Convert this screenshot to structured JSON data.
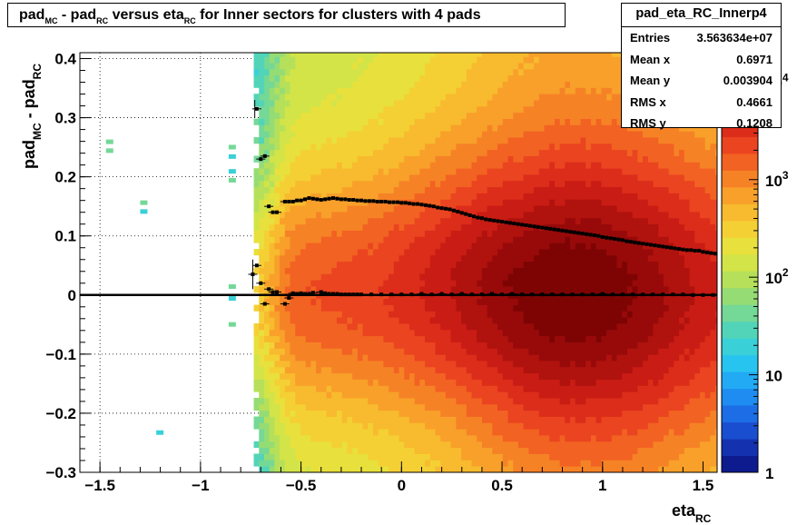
{
  "title": {
    "parts": [
      "pad",
      "MC",
      " - pad",
      "RC",
      " versus eta",
      "RC",
      " for Inner sectors for clusters with 4 pads"
    ]
  },
  "stats": {
    "name": "pad_eta_RC_Innerp4",
    "rows": [
      {
        "key": "Entries",
        "value": "3.563634e+07"
      },
      {
        "key": "Mean x",
        "value": "0.6971"
      },
      {
        "key": "Mean y",
        "value": "0.003904"
      },
      {
        "key": "RMS x",
        "value": "0.4661"
      },
      {
        "key": "RMS y",
        "value": "0.1208"
      }
    ]
  },
  "chart_data": {
    "type": "heatmap",
    "xlabel": {
      "main": "eta",
      "sub": "RC"
    },
    "ylabel": {
      "main1": "pad",
      "sub1": "MC",
      "main2": " - pad",
      "sub2": "RC"
    },
    "xlim": [
      -1.6,
      1.57
    ],
    "ylim": [
      -0.3,
      0.41
    ],
    "x_ticks": [
      {
        "v": -1.5,
        "label": "−1.5"
      },
      {
        "v": -1,
        "label": "−1"
      },
      {
        "v": -0.5,
        "label": "−0.5"
      },
      {
        "v": 0,
        "label": "0"
      },
      {
        "v": 0.5,
        "label": "0.5"
      },
      {
        "v": 1,
        "label": "1"
      },
      {
        "v": 1.5,
        "label": "1.5"
      }
    ],
    "y_ticks": [
      {
        "v": 0.4,
        "label": "0.4"
      },
      {
        "v": 0.3,
        "label": "0.3"
      },
      {
        "v": 0.2,
        "label": "0.2"
      },
      {
        "v": 0.1,
        "label": "0.1"
      },
      {
        "v": 0,
        "label": "0"
      },
      {
        "v": -0.1,
        "label": "−0.1"
      },
      {
        "v": -0.2,
        "label": "−0.2"
      },
      {
        "v": -0.3,
        "label": "−0.3"
      }
    ],
    "grid": true,
    "z_scale": "log",
    "z_range": [
      1,
      20000
    ],
    "z_ticks": [
      {
        "v": 1,
        "label": "1",
        "exp": ""
      },
      {
        "v": 10,
        "label": "10",
        "exp": ""
      },
      {
        "v": 100,
        "label": "10",
        "exp": "2"
      },
      {
        "v": 1000,
        "label": "10",
        "exp": "3"
      },
      {
        "v": 10000,
        "label": "10",
        "exp": "4"
      }
    ],
    "palette": [
      "#0d1b8e",
      "#1432b0",
      "#1a4ed0",
      "#1c6de6",
      "#1e8cf0",
      "#22aaf4",
      "#28c4f0",
      "#3ad0d8",
      "#52d4b8",
      "#74d896",
      "#96dc74",
      "#b6e05a",
      "#d2e448",
      "#e8e03c",
      "#f4d034",
      "#f8ba2e",
      "#f8a02a",
      "#f68226",
      "#f26222",
      "#ea4420",
      "#dc2c1a",
      "#c81c14",
      "#b0120e",
      "#980a0a",
      "#7e0404"
    ],
    "profile_upper": {
      "x": [
        -0.72,
        -0.7,
        -0.68,
        -0.66,
        -0.64,
        -0.62,
        -0.58,
        -0.56,
        -0.54,
        -0.52,
        -0.5,
        -0.48,
        -0.46,
        -0.44,
        -0.42,
        -0.4,
        -0.38,
        -0.36,
        -0.34,
        -0.32,
        -0.3,
        -0.28,
        -0.26,
        -0.24,
        -0.22,
        -0.2,
        -0.18,
        -0.16,
        -0.14,
        -0.12,
        -0.1,
        -0.08,
        -0.06,
        -0.04,
        -0.02,
        0.0,
        0.02,
        0.04,
        0.06,
        0.08,
        0.1,
        0.12,
        0.14,
        0.16,
        0.18,
        0.2,
        0.22,
        0.24,
        0.26,
        0.28,
        0.3,
        0.32,
        0.34,
        0.36,
        0.38,
        0.4,
        0.42,
        0.44,
        0.46,
        0.48,
        0.5,
        0.52,
        0.54,
        0.56,
        0.58,
        0.6,
        0.62,
        0.64,
        0.66,
        0.68,
        0.7,
        0.72,
        0.74,
        0.76,
        0.78,
        0.8,
        0.82,
        0.84,
        0.86,
        0.88,
        0.9,
        0.92,
        0.94,
        0.96,
        0.98,
        1.0,
        1.02,
        1.04,
        1.06,
        1.08,
        1.1,
        1.12,
        1.14,
        1.16,
        1.18,
        1.2,
        1.22,
        1.24,
        1.26,
        1.28,
        1.3,
        1.32,
        1.34,
        1.36,
        1.38,
        1.4,
        1.42,
        1.44,
        1.46,
        1.48,
        1.5,
        1.52,
        1.54,
        1.56
      ],
      "y": [
        0.315,
        0.23,
        0.235,
        0.15,
        0.14,
        0.14,
        0.158,
        0.158,
        0.158,
        0.16,
        0.16,
        0.162,
        0.164,
        0.163,
        0.162,
        0.161,
        0.162,
        0.163,
        0.164,
        0.163,
        0.162,
        0.162,
        0.161,
        0.161,
        0.16,
        0.16,
        0.159,
        0.159,
        0.159,
        0.158,
        0.158,
        0.158,
        0.157,
        0.157,
        0.157,
        0.156,
        0.156,
        0.155,
        0.154,
        0.154,
        0.153,
        0.152,
        0.151,
        0.15,
        0.148,
        0.147,
        0.146,
        0.145,
        0.143,
        0.141,
        0.139,
        0.137,
        0.135,
        0.133,
        0.131,
        0.13,
        0.128,
        0.127,
        0.126,
        0.125,
        0.124,
        0.123,
        0.122,
        0.121,
        0.12,
        0.119,
        0.118,
        0.117,
        0.116,
        0.115,
        0.114,
        0.113,
        0.112,
        0.111,
        0.11,
        0.109,
        0.108,
        0.107,
        0.106,
        0.105,
        0.104,
        0.103,
        0.102,
        0.101,
        0.1,
        0.098,
        0.097,
        0.096,
        0.095,
        0.094,
        0.093,
        0.091,
        0.09,
        0.089,
        0.088,
        0.087,
        0.086,
        0.085,
        0.084,
        0.083,
        0.082,
        0.081,
        0.08,
        0.079,
        0.078,
        0.077,
        0.076,
        0.076,
        0.075,
        0.075,
        0.073,
        0.072,
        0.071,
        0.07
      ]
    },
    "profile_lower": {
      "x": [
        -0.74,
        -0.72,
        -0.7,
        -0.68,
        -0.66,
        -0.64,
        -0.62,
        -0.58,
        -0.56,
        -0.54,
        -0.52,
        -0.5,
        -0.48,
        -0.46,
        -0.44,
        -0.4,
        -0.38,
        -0.36,
        -0.34,
        -0.32,
        -0.3,
        -0.28,
        -0.26,
        -0.24,
        -0.22,
        -0.2,
        -0.15,
        -0.1,
        -0.05,
        0.0,
        0.05,
        0.1,
        0.15,
        0.2,
        0.25,
        0.3,
        0.35,
        0.4,
        0.45,
        0.5,
        0.55,
        0.6,
        0.65,
        0.7,
        0.75,
        0.8,
        0.85,
        0.9,
        0.95,
        1.0,
        1.05,
        1.1,
        1.15,
        1.2,
        1.25,
        1.3,
        1.35,
        1.4,
        1.45,
        1.5,
        1.55
      ],
      "y": [
        0.035,
        0.05,
        0.02,
        -0.015,
        0.01,
        0.005,
        0.005,
        -0.015,
        -0.005,
        0.003,
        0.002,
        0.003,
        0.002,
        0.002,
        0.004,
        0.005,
        0.003,
        0.002,
        0.002,
        0.002,
        0.001,
        0.001,
        0.001,
        0.001,
        0.001,
        0.001,
        0.001,
        0.001,
        0.001,
        0.001,
        0.001,
        0.002,
        0.001,
        0.002,
        0.001,
        0.002,
        0.001,
        0.001,
        0.002,
        0.001,
        0.002,
        0.001,
        0.001,
        0.001,
        0.001,
        0.001,
        0.001,
        0.001,
        0.001,
        0.002,
        0.001,
        0.001,
        0.001,
        0.001,
        0.001,
        0.001,
        0.001,
        0.001,
        0.0,
        0.0,
        0.0
      ]
    },
    "scatter_cells": [
      {
        "x": -1.47,
        "y": 0.255,
        "z": 40
      },
      {
        "x": -1.47,
        "y": 0.24,
        "z": 40
      },
      {
        "x": -1.3,
        "y": 0.152,
        "z": 40
      },
      {
        "x": -1.3,
        "y": 0.137,
        "z": 20
      },
      {
        "x": -1.22,
        "y": -0.237,
        "z": 20
      },
      {
        "x": -0.86,
        "y": 0.246,
        "z": 40
      },
      {
        "x": -0.86,
        "y": 0.23,
        "z": 20
      },
      {
        "x": -0.86,
        "y": 0.205,
        "z": 20
      },
      {
        "x": -0.86,
        "y": 0.19,
        "z": 40
      },
      {
        "x": -0.86,
        "y": 0.01,
        "z": 40
      },
      {
        "x": -0.86,
        "y": -0.01,
        "z": 20
      },
      {
        "x": -0.86,
        "y": -0.054,
        "z": 40
      }
    ]
  }
}
